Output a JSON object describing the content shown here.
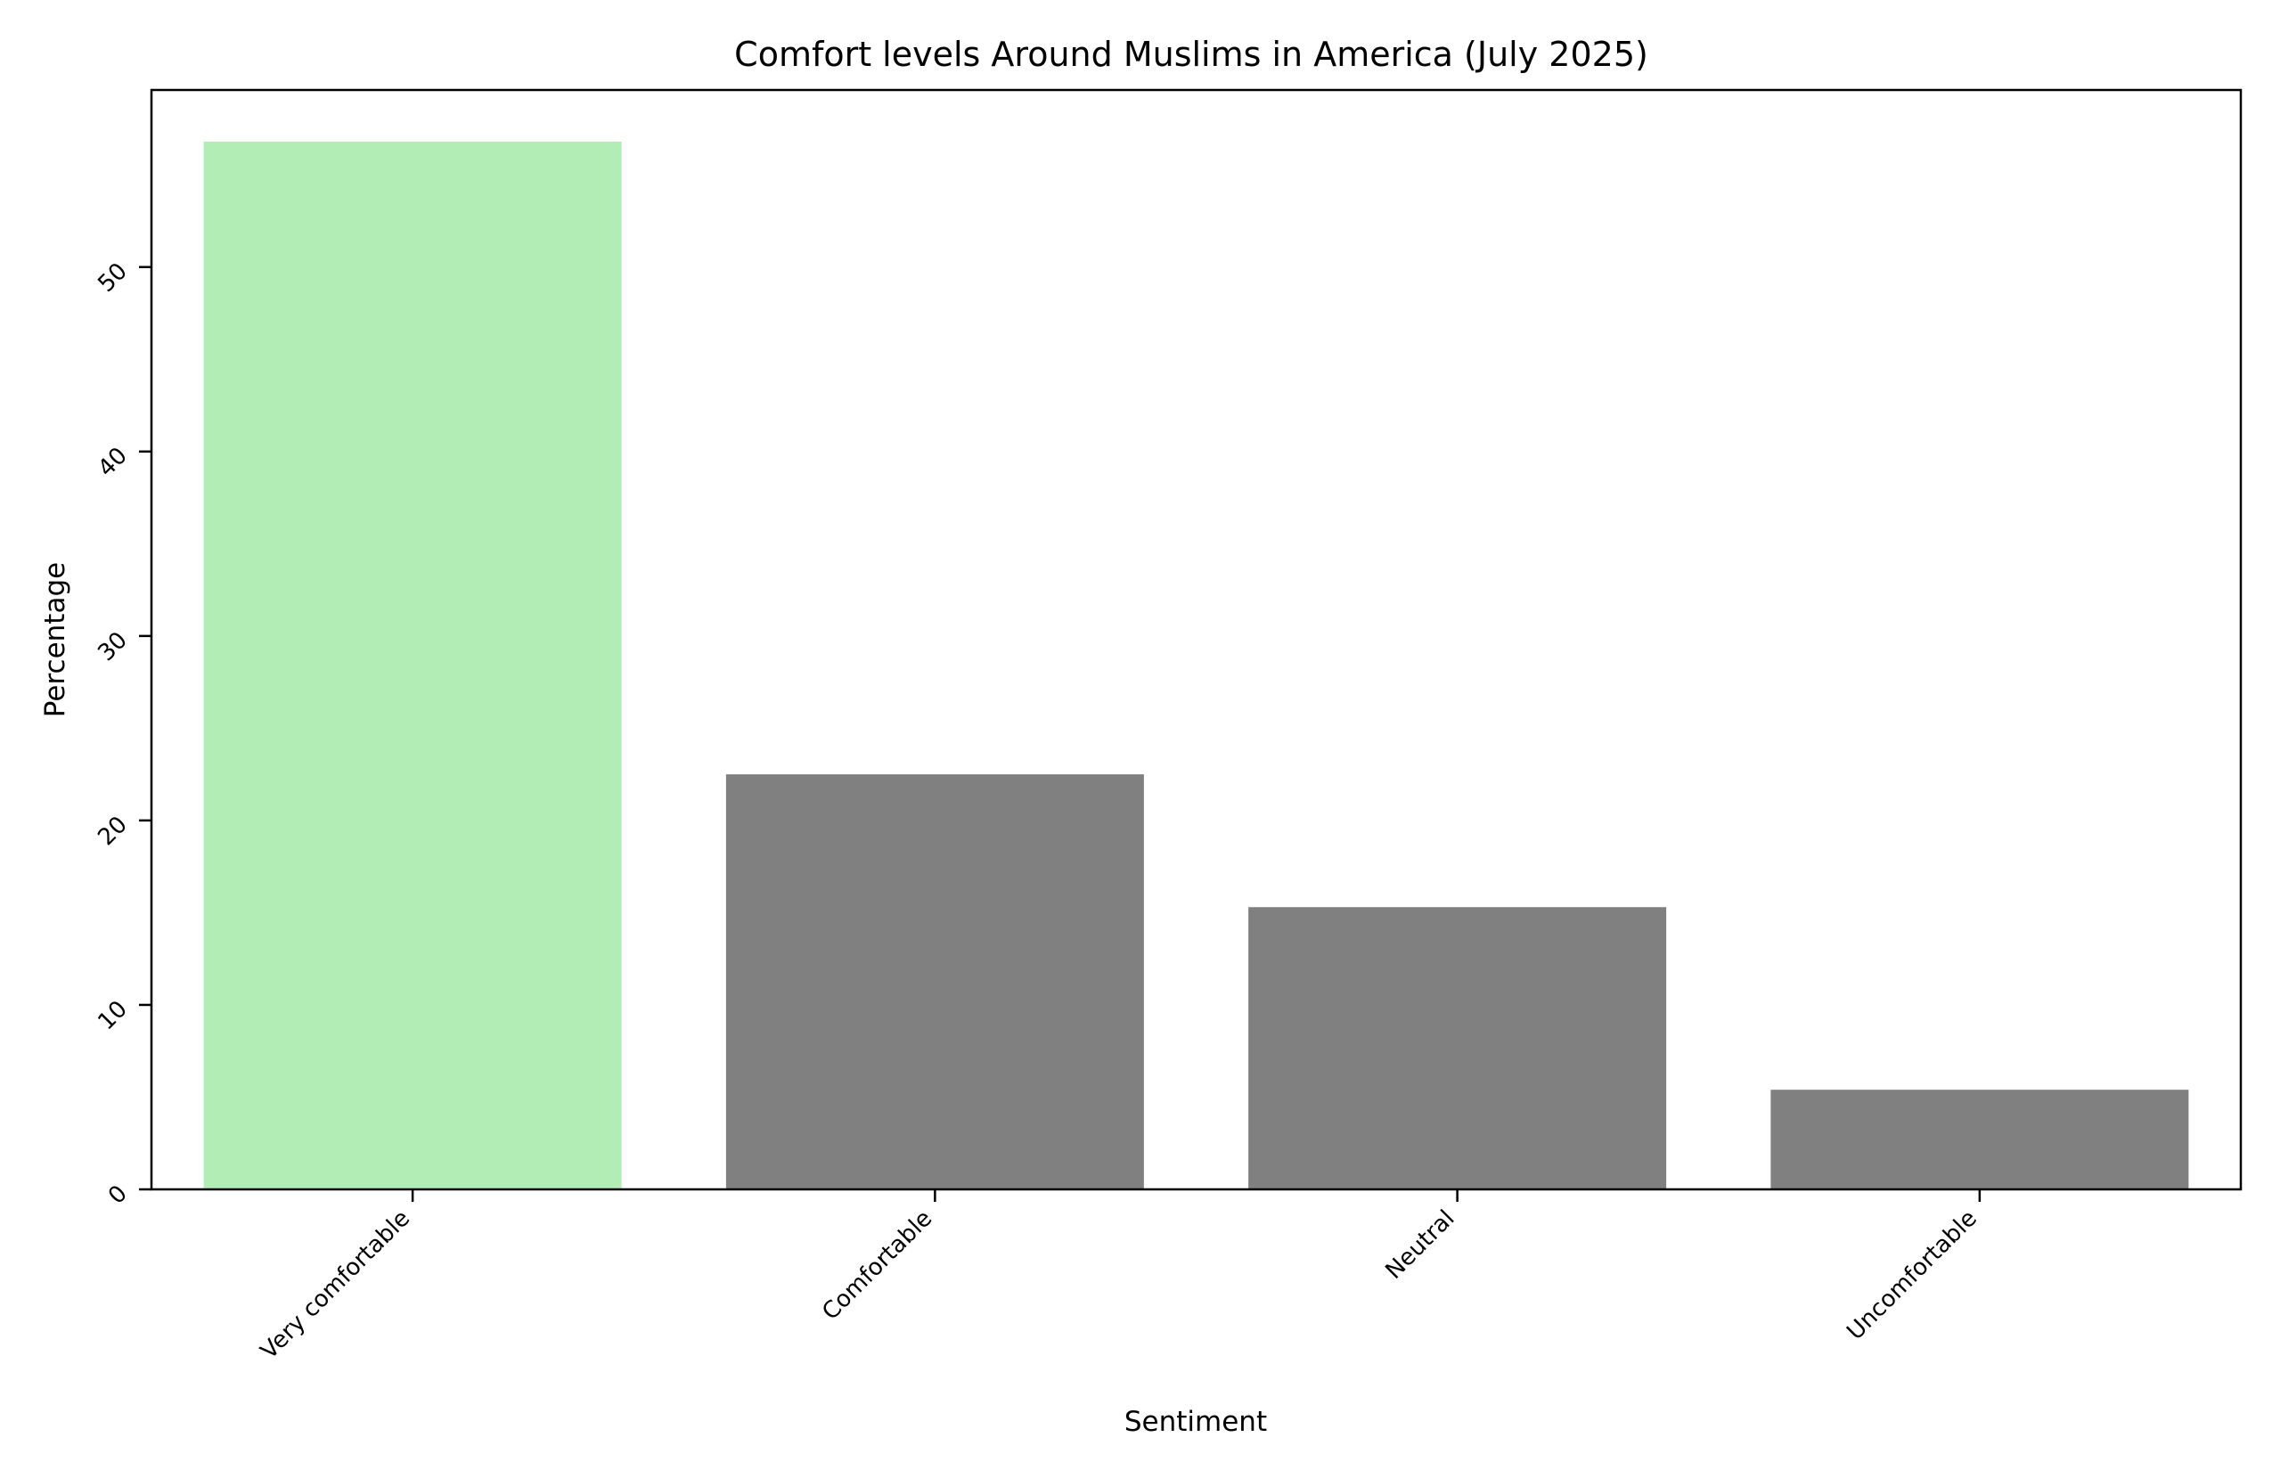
{
  "chart_data": {
    "type": "bar",
    "title": "Comfort levels Around Muslims in America (July 2025)",
    "xlabel": "Sentiment",
    "ylabel": "Percentage",
    "categories": [
      "Very comfortable",
      "Comfortable",
      "Neutral",
      "Uncomfortable"
    ],
    "values": [
      56.8,
      22.5,
      15.3,
      5.4
    ],
    "bar_colors": [
      "#b2edb5",
      "#808080",
      "#808080",
      "#808080"
    ],
    "yticks": [
      0,
      10,
      20,
      30,
      40,
      50
    ],
    "ylim": [
      0,
      59.6
    ],
    "grid": false,
    "legend": "none"
  }
}
